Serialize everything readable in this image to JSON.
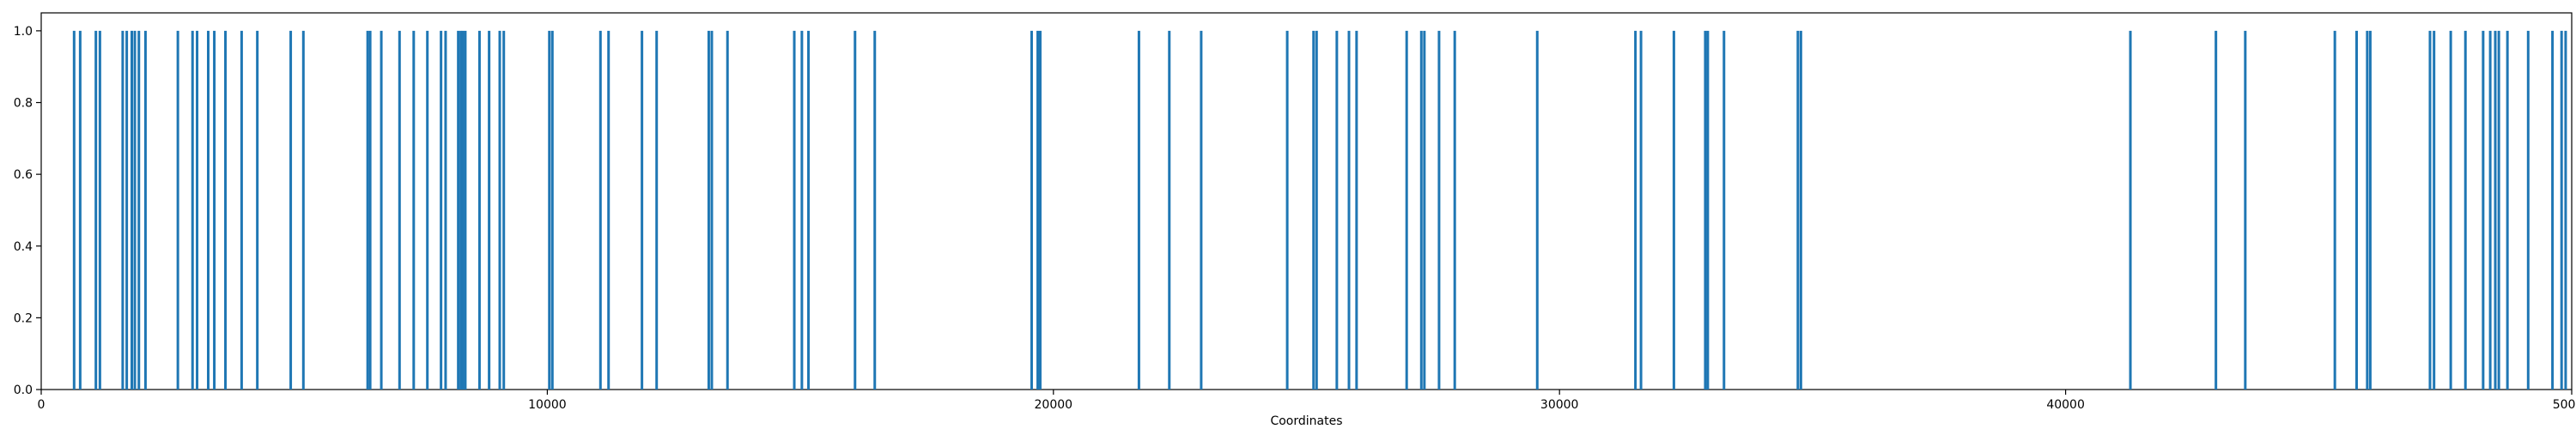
{
  "chart_data": {
    "type": "bar",
    "title": "",
    "xlabel": "Coordinates",
    "ylabel": "",
    "xlim": [
      0,
      50000
    ],
    "ylim": [
      0,
      1.05
    ],
    "x_ticks": [
      0,
      10000,
      20000,
      30000,
      40000,
      50000
    ],
    "x_tick_labels": [
      "0",
      "10000",
      "20000",
      "30000",
      "40000",
      "50000"
    ],
    "y_ticks": [
      0.0,
      0.2,
      0.4,
      0.6,
      0.8,
      1.0
    ],
    "y_tick_labels": [
      "0.0",
      "0.2",
      "0.4",
      "0.6",
      "0.8",
      "1.0"
    ],
    "grid": false,
    "legend": "none",
    "bar_color": "#1f77b4",
    "bar_value": 1.0,
    "positions": [
      650,
      770,
      1080,
      1160,
      1610,
      1690,
      1790,
      1850,
      1930,
      2060,
      2700,
      2990,
      3080,
      3300,
      3420,
      3640,
      3960,
      4270,
      4930,
      5180,
      6450,
      6500,
      6720,
      7080,
      7360,
      7630,
      7900,
      7990,
      8240,
      8290,
      8330,
      8380,
      8660,
      8850,
      9060,
      9140,
      10040,
      10100,
      11050,
      11210,
      11870,
      12160,
      13190,
      13250,
      13560,
      14880,
      15030,
      15160,
      16080,
      16470,
      19570,
      19690,
      19740,
      21690,
      22290,
      22920,
      24620,
      25140,
      25200,
      25600,
      25840,
      25990,
      26980,
      27270,
      27330,
      27620,
      27930,
      29560,
      31500,
      31610,
      32260,
      32880,
      32930,
      33250,
      34710,
      34770,
      41280,
      42970,
      43550,
      45320,
      45750,
      45960,
      46020,
      47200,
      47280,
      47610,
      47900,
      48250,
      48390,
      48490,
      48560,
      48730,
      49140,
      49620,
      49800,
      49880
    ]
  }
}
